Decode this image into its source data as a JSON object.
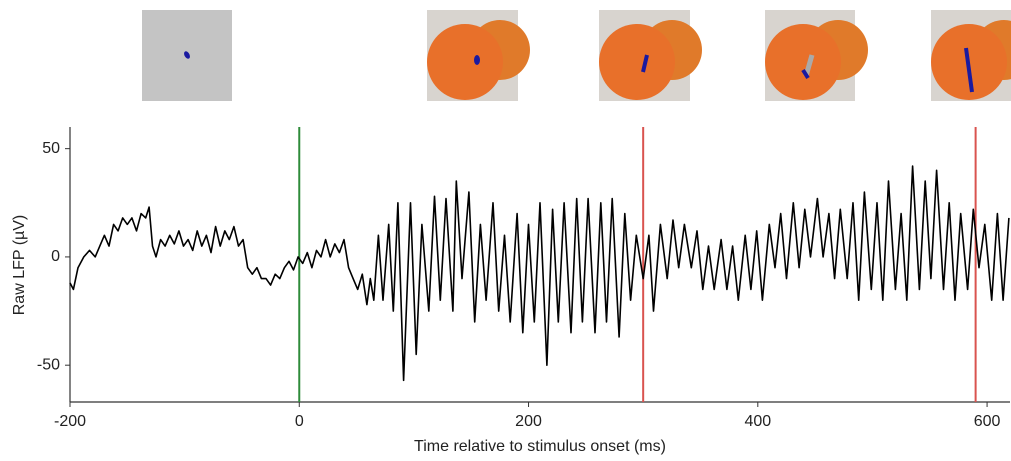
{
  "chart_data": {
    "type": "line",
    "xlabel": "Time relative to stimulus onset (ms)",
    "ylabel": "Raw LFP (µV)",
    "color": "#000000",
    "xlim": [
      -200,
      620
    ],
    "ylim": [
      -67,
      60
    ],
    "xticks": [
      -200,
      0,
      200,
      400,
      600
    ],
    "yticks": [
      -50,
      0,
      50
    ],
    "vlines": [
      {
        "x": 0,
        "color": "#2e8b3a"
      },
      {
        "x": 300,
        "color": "#d9534f"
      },
      {
        "x": 590,
        "color": "#d9534f"
      }
    ],
    "x": [
      -200,
      -197,
      -193,
      -188,
      -183,
      -178,
      -174,
      -170,
      -166,
      -162,
      -158,
      -154,
      -150,
      -146,
      -142,
      -138,
      -134,
      -131,
      -128,
      -125,
      -121,
      -117,
      -113,
      -109,
      -105,
      -101,
      -97,
      -93,
      -89,
      -85,
      -81,
      -77,
      -73,
      -69,
      -65,
      -61,
      -57,
      -53,
      -49,
      -45,
      -41,
      -37,
      -33,
      -29,
      -25,
      -21,
      -17,
      -13,
      -9,
      -5,
      -1,
      3,
      7,
      11,
      15,
      19,
      23,
      27,
      31,
      35,
      39,
      43,
      47,
      51,
      55,
      59,
      62,
      65,
      69,
      73,
      78,
      82,
      86,
      91,
      97,
      102,
      107,
      113,
      118,
      123,
      128,
      134,
      137,
      142,
      148,
      153,
      158,
      163,
      169,
      174,
      179,
      184,
      190,
      195,
      200,
      205,
      210,
      216,
      221,
      226,
      231,
      237,
      242,
      247,
      252,
      258,
      263,
      268,
      273,
      279,
      284,
      289,
      294,
      300,
      305,
      309,
      315,
      321,
      326,
      331,
      336,
      342,
      347,
      352,
      357,
      362,
      368,
      373,
      378,
      383,
      389,
      394,
      399,
      404,
      410,
      415,
      420,
      425,
      431,
      436,
      441,
      446,
      452,
      457,
      462,
      467,
      472,
      478,
      483,
      488,
      493,
      499,
      504,
      509,
      514,
      520,
      525,
      530,
      535,
      541,
      546,
      551,
      556,
      562,
      567,
      572,
      577,
      583,
      588,
      593,
      598,
      604,
      609,
      614,
      619
    ],
    "values": [
      -12,
      -15,
      -5,
      0,
      3,
      0,
      5,
      10,
      5,
      15,
      12,
      18,
      15,
      18,
      12,
      20,
      18,
      23,
      5,
      0,
      8,
      5,
      10,
      6,
      12,
      5,
      8,
      3,
      12,
      5,
      10,
      2,
      14,
      5,
      12,
      8,
      14,
      5,
      8,
      -5,
      -8,
      -5,
      -10,
      -10,
      -13,
      -8,
      -10,
      -5,
      -2,
      -6,
      0,
      -3,
      2,
      -5,
      3,
      0,
      8,
      0,
      6,
      2,
      8,
      -5,
      -10,
      -15,
      -8,
      -22,
      -10,
      -20,
      10,
      -20,
      15,
      -25,
      25,
      -57,
      25,
      -45,
      15,
      -25,
      28,
      -20,
      27,
      -25,
      35,
      -10,
      30,
      -30,
      15,
      -20,
      25,
      -25,
      10,
      -30,
      20,
      -35,
      15,
      -30,
      25,
      -50,
      22,
      -30,
      25,
      -35,
      27,
      -30,
      27,
      -35,
      25,
      -30,
      27,
      -37,
      20,
      -20,
      10,
      -10,
      10,
      -25,
      15,
      -10,
      17,
      -5,
      15,
      -5,
      12,
      -15,
      5,
      -15,
      8,
      -15,
      5,
      -20,
      10,
      -15,
      12,
      -20,
      15,
      -5,
      20,
      -10,
      25,
      -5,
      22,
      0,
      27,
      0,
      20,
      -10,
      22,
      -10,
      25,
      -20,
      30,
      -15,
      25,
      -20,
      35,
      -15,
      20,
      -20,
      42,
      -15,
      35,
      -10,
      40,
      -15,
      25,
      -20,
      20,
      -15,
      22,
      -5,
      15,
      -20,
      20,
      -20,
      18
    ]
  }
}
